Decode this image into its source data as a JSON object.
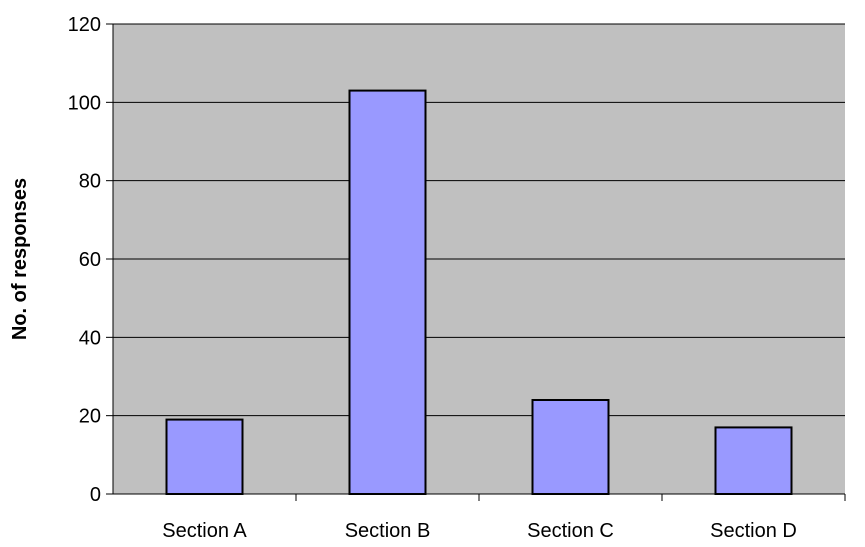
{
  "chart_data": {
    "type": "bar",
    "title": "",
    "xlabel": "",
    "ylabel": "No. of responses",
    "categories": [
      "Section A",
      "Section B",
      "Section C",
      "Section D"
    ],
    "values": [
      19,
      103,
      24,
      17
    ],
    "ylim": [
      0,
      120
    ],
    "yticks": [
      "0",
      "20",
      "40",
      "60",
      "80",
      "100",
      "120"
    ],
    "grid": true,
    "legend": "none",
    "colors": {
      "plot_background": "#c0c0c0",
      "bar_fill": "#9999ff",
      "bar_stroke": "#000000",
      "gridline": "#000000"
    }
  }
}
